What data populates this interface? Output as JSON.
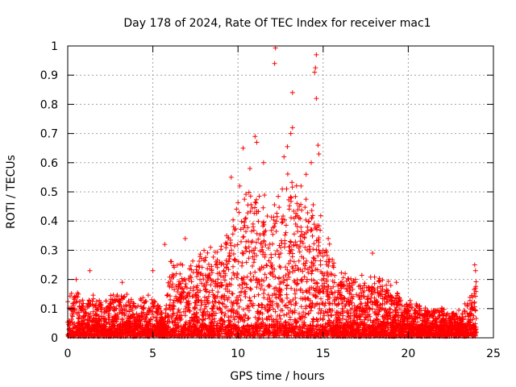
{
  "chart_data": {
    "type": "scatter",
    "title": "Day 178 of 2024, Rate Of TEC Index for receiver mac1",
    "xlabel": "GPS time / hours",
    "ylabel": "ROTI / TECUs",
    "xlim": [
      0,
      25
    ],
    "ylim": [
      0,
      1
    ],
    "x_ticks": [
      0,
      5,
      10,
      15,
      20,
      25
    ],
    "x_tick_labels": [
      "0",
      "5",
      "10",
      "15",
      "20",
      "25"
    ],
    "y_ticks": [
      0,
      0.1,
      0.2,
      0.3,
      0.4,
      0.5,
      0.6,
      0.7,
      0.8,
      0.9,
      1
    ],
    "y_tick_labels": [
      "0",
      "0.1",
      "0.2",
      "0.3",
      "0.4",
      "0.5",
      "0.6",
      "0.7",
      "0.8",
      "0.9",
      "1"
    ],
    "grid": true,
    "legend": "none",
    "marker": "+",
    "series_color": "#ff0000",
    "grid_color": "#a0a0a0",
    "data_x_range": [
      0,
      24
    ],
    "envelope": {
      "hours": [
        0,
        0.5,
        1,
        1.5,
        2,
        3,
        4,
        5,
        5.7,
        6,
        7,
        8,
        9,
        9.5,
        10,
        10.5,
        11,
        11.5,
        12,
        12.5,
        13,
        13.5,
        14,
        14.5,
        15,
        15.5,
        16,
        17,
        18,
        19,
        20,
        21,
        22,
        23,
        23.5,
        24
      ],
      "typical_max": [
        0.12,
        0.14,
        0.1,
        0.12,
        0.11,
        0.13,
        0.11,
        0.12,
        0.05,
        0.22,
        0.21,
        0.24,
        0.26,
        0.32,
        0.38,
        0.42,
        0.44,
        0.4,
        0.36,
        0.4,
        0.45,
        0.42,
        0.4,
        0.38,
        0.3,
        0.24,
        0.18,
        0.16,
        0.18,
        0.14,
        0.1,
        0.08,
        0.08,
        0.07,
        0.1,
        0.18
      ]
    },
    "outliers": [
      {
        "x": 12.2,
        "y": 0.993
      },
      {
        "x": 12.15,
        "y": 0.94
      },
      {
        "x": 14.6,
        "y": 0.97
      },
      {
        "x": 14.55,
        "y": 0.925
      },
      {
        "x": 14.5,
        "y": 0.91
      },
      {
        "x": 14.6,
        "y": 0.82
      },
      {
        "x": 13.2,
        "y": 0.84
      },
      {
        "x": 13.2,
        "y": 0.72
      },
      {
        "x": 13.1,
        "y": 0.7
      },
      {
        "x": 11.0,
        "y": 0.69
      },
      {
        "x": 11.1,
        "y": 0.67
      },
      {
        "x": 10.3,
        "y": 0.65
      },
      {
        "x": 12.9,
        "y": 0.655
      },
      {
        "x": 14.7,
        "y": 0.66
      },
      {
        "x": 14.75,
        "y": 0.63
      },
      {
        "x": 12.7,
        "y": 0.62
      },
      {
        "x": 14.3,
        "y": 0.6
      },
      {
        "x": 9.6,
        "y": 0.55
      },
      {
        "x": 12.6,
        "y": 0.51
      },
      {
        "x": 10.1,
        "y": 0.52
      },
      {
        "x": 11.5,
        "y": 0.6
      },
      {
        "x": 13.7,
        "y": 0.52
      },
      {
        "x": 14.0,
        "y": 0.56
      },
      {
        "x": 10.7,
        "y": 0.58
      },
      {
        "x": 6.9,
        "y": 0.34
      },
      {
        "x": 5.7,
        "y": 0.32
      },
      {
        "x": 5.0,
        "y": 0.23
      },
      {
        "x": 17.9,
        "y": 0.29
      },
      {
        "x": 15.3,
        "y": 0.34
      },
      {
        "x": 1.3,
        "y": 0.23
      },
      {
        "x": 0.5,
        "y": 0.2
      },
      {
        "x": 19.3,
        "y": 0.19
      },
      {
        "x": 23.9,
        "y": 0.25
      },
      {
        "x": 23.95,
        "y": 0.23
      },
      {
        "x": 3.2,
        "y": 0.19
      },
      {
        "x": 16.9,
        "y": 0.2
      }
    ]
  }
}
